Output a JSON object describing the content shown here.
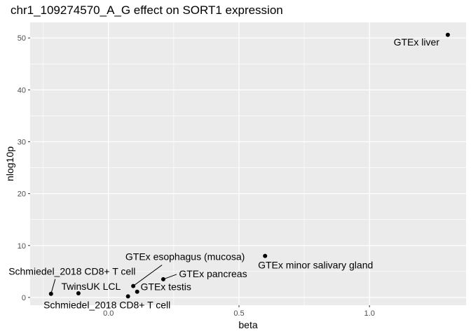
{
  "chart_data": {
    "type": "scatter",
    "title": "chr1_109274570_A_G effect on SORT1 expression",
    "xlabel": "beta",
    "ylabel": "nlog10p",
    "xlim": [
      -0.3,
      1.37
    ],
    "ylim": [
      -1.5,
      53
    ],
    "xticks": [
      0.0,
      0.5,
      1.0
    ],
    "xtick_labels": [
      "0.0",
      "0.5",
      "1.0"
    ],
    "yticks": [
      0,
      10,
      20,
      30,
      40,
      50
    ],
    "ytick_labels": [
      "0",
      "10",
      "20",
      "30",
      "40",
      "50"
    ],
    "grid": true,
    "background": "#ebebeb",
    "gridline_color": "#ffffff",
    "point_color": "#000000",
    "points": [
      {
        "x": -0.22,
        "y": 0.7,
        "label": "Schmiedel_2018 CD8+ T cell"
      },
      {
        "x": -0.115,
        "y": 0.8,
        "label": "TwinsUK LCL"
      },
      {
        "x": 0.075,
        "y": 0.2,
        "label": "Schmiedel_2018 CD8+ T cell"
      },
      {
        "x": 0.11,
        "y": 1.1,
        "label": "GTEx testis"
      },
      {
        "x": 0.095,
        "y": 2.2,
        "label": "GTEx esophagus (mucosa)"
      },
      {
        "x": 0.21,
        "y": 3.5,
        "label": "GTEx pancreas"
      },
      {
        "x": 0.6,
        "y": 8.0,
        "label": "GTEx minor salivary gland"
      },
      {
        "x": 1.3,
        "y": 50.6,
        "label": "GTEx liver"
      }
    ]
  }
}
